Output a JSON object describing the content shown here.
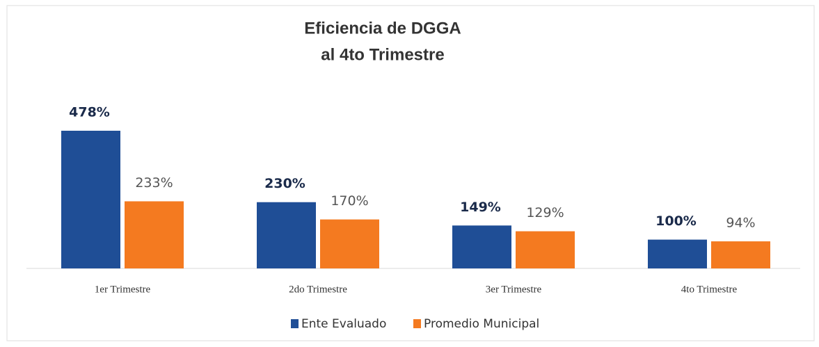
{
  "chart_data": {
    "type": "bar",
    "title": [
      "Eficiencia de DGGA",
      "al 4to Trimestre"
    ],
    "categories": [
      "1er Trimestre",
      "2do Trimestre",
      "3er Trimestre",
      "4to Trimestre"
    ],
    "series": [
      {
        "name": "Ente Evaluado",
        "color": "#1f4e96",
        "values": [
          478,
          230,
          149,
          100
        ],
        "value_labels": [
          "478%",
          "230%",
          "149%",
          "100%"
        ]
      },
      {
        "name": "Promedio Municipal",
        "color": "#f47a20",
        "values": [
          233,
          170,
          129,
          94
        ],
        "value_labels": [
          "233%",
          "170%",
          "129%",
          "94%"
        ]
      }
    ],
    "legend": "bottom"
  }
}
